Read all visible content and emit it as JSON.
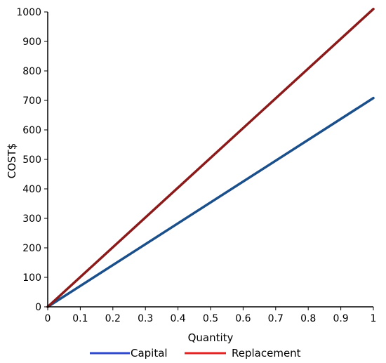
{
  "chart_data": {
    "type": "line",
    "title": "",
    "xlabel": "Quantity",
    "ylabel": "COST$",
    "xlim": [
      0,
      1
    ],
    "ylim": [
      0,
      1000
    ],
    "grid": false,
    "legend_placement": "bottom",
    "x_ticks": [
      "0",
      "0.1",
      "0.2",
      "0.3",
      "0.4",
      "0.5",
      "0.6",
      "0.7",
      "0.8",
      "0.9",
      "1"
    ],
    "y_ticks": [
      "0",
      "100",
      "200",
      "300",
      "400",
      "500",
      "600",
      "700",
      "800",
      "900",
      "1000"
    ],
    "series": [
      {
        "name": "Capital",
        "color": "#1a4f8a",
        "legend_color": "#3049c8",
        "x": [
          0,
          1
        ],
        "y": [
          0,
          708
        ]
      },
      {
        "name": "Replacement",
        "color": "#8b1a1a",
        "legend_color": "#e02424",
        "x": [
          0,
          1
        ],
        "y": [
          0,
          1010
        ]
      }
    ]
  }
}
